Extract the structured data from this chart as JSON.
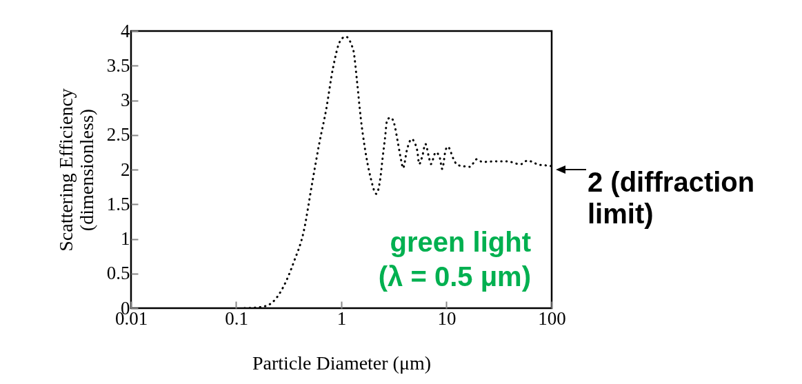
{
  "chart_data": {
    "type": "line",
    "xlabel": "Particle Diameter (μm)",
    "ylabel": "Scattering Efficiency (dimensionless)",
    "log": "x",
    "xlim": [
      0.01,
      100
    ],
    "xticks": [
      0.01,
      0.1,
      1,
      10,
      100
    ],
    "ylim": [
      0,
      4
    ],
    "yticks": [
      0,
      0.5,
      1,
      1.5,
      2,
      2.5,
      3,
      3.5,
      4
    ],
    "grid": false,
    "line_style": "dotted",
    "marker": "none",
    "series": [
      {
        "color": "#000000",
        "x": [
          0.12,
          0.16,
          0.205,
          0.277,
          0.358,
          0.436,
          0.53,
          0.617,
          0.718,
          0.834,
          0.97,
          1.1,
          1.25,
          1.31,
          1.41,
          1.53,
          1.67,
          1.9,
          2.15,
          2.35,
          2.47,
          2.6,
          2.73,
          2.95,
          3.17,
          3.44,
          3.72,
          3.86,
          4.2,
          4.65,
          5.26,
          5.5,
          5.9,
          6.3,
          6.8,
          7.1,
          7.9,
          8.6,
          9.1,
          9.8,
          10.3,
          11.6,
          12.6,
          14.4,
          16.7,
          19.4,
          22,
          29.7,
          39,
          44.6,
          51.5,
          58.6,
          76,
          89,
          100
        ],
        "values": [
          0,
          0.01,
          0.05,
          0.29,
          0.69,
          1.09,
          1.82,
          2.38,
          2.87,
          3.47,
          3.85,
          3.92,
          3.8,
          3.7,
          3.27,
          2.74,
          2.32,
          1.88,
          1.65,
          1.88,
          2.17,
          2.45,
          2.72,
          2.75,
          2.67,
          2.4,
          2.12,
          2.02,
          2.28,
          2.44,
          2.28,
          2.08,
          2.2,
          2.37,
          2.18,
          2.08,
          2.25,
          2.18,
          2.01,
          2.28,
          2.33,
          2.16,
          2.07,
          2.05,
          2.04,
          2.15,
          2.11,
          2.12,
          2.12,
          2.09,
          2.08,
          2.13,
          2.07,
          2.06,
          2.05
        ]
      }
    ],
    "annotations": [
      {
        "text": "2 (diffraction limit)",
        "x": 100,
        "y": 2
      },
      "green light (λ = 0.5 μm)"
    ]
  }
}
